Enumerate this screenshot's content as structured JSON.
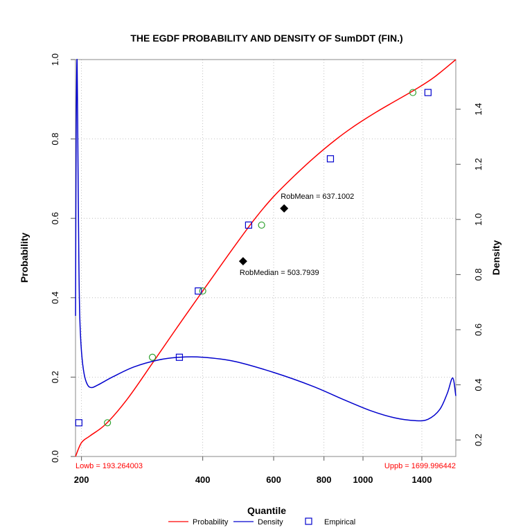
{
  "chart_data": {
    "type": "line",
    "title": "THE EGDF PROBABILITY AND DENSITY OF  SumDDT  (FIN.)",
    "xlabel": "Quantile",
    "ylabel": "Probability",
    "y2label": "Density",
    "x_scale": "log",
    "xlim": [
      193.264003,
      1699.996442
    ],
    "ylim": [
      0,
      1
    ],
    "y2lim": [
      0.14,
      1.58
    ],
    "x_ticks": [
      200,
      400,
      600,
      800,
      1000,
      1400
    ],
    "y_ticks": [
      0.0,
      0.2,
      0.4,
      0.6,
      0.8,
      1.0
    ],
    "y2_ticks": [
      0.2,
      0.4,
      0.6,
      0.8,
      1.0,
      1.2,
      1.4
    ],
    "grid": true,
    "colors": {
      "probability": "#ff0000",
      "density": "#0000cd",
      "empirical": "#0000cd",
      "fitted_points": "#2ca02c",
      "robust_points": "#000000",
      "bounds": "#ff0000",
      "grid": "#b0b0b0"
    },
    "series": [
      {
        "name": "Probability",
        "axis": "left",
        "x": [
          193.3,
          200,
          210,
          230,
          260,
          300,
          340,
          380,
          430,
          480,
          540,
          600,
          680,
          760,
          860,
          960,
          1080,
          1200,
          1350,
          1500,
          1700
        ],
        "y": [
          0.0,
          0.035,
          0.052,
          0.082,
          0.145,
          0.235,
          0.315,
          0.385,
          0.462,
          0.53,
          0.6,
          0.655,
          0.71,
          0.755,
          0.8,
          0.835,
          0.868,
          0.895,
          0.925,
          0.955,
          1.0
        ]
      },
      {
        "name": "Density",
        "axis": "right",
        "x": [
          193.3,
          194,
          195,
          196,
          197,
          198,
          200,
          203,
          207,
          212,
          220,
          240,
          270,
          310,
          350,
          400,
          480,
          600,
          750,
          900,
          1050,
          1200,
          1350,
          1450,
          1550,
          1620,
          1670,
          1700
        ],
        "y": [
          0.65,
          1.3,
          1.58,
          1.22,
          0.85,
          0.65,
          0.52,
          0.44,
          0.4,
          0.39,
          0.4,
          0.43,
          0.465,
          0.49,
          0.5,
          0.5,
          0.485,
          0.445,
          0.395,
          0.345,
          0.305,
          0.28,
          0.27,
          0.275,
          0.31,
          0.37,
          0.425,
          0.36
        ]
      },
      {
        "name": "Empirical",
        "axis": "left",
        "x": [
          197,
          350,
          390,
          520,
          830,
          1450
        ],
        "y": [
          0.085,
          0.25,
          0.417,
          0.583,
          0.75,
          0.917
        ]
      }
    ],
    "fitted_points": {
      "x": [
        232,
        300,
        400,
        560,
        1330
      ],
      "y": [
        0.085,
        0.25,
        0.417,
        0.583,
        0.917
      ]
    },
    "robust_points": [
      {
        "label": "RobMean = 637.1002",
        "x": 637.1002,
        "y": 0.625
      },
      {
        "label": "RobMedian = 503.7939",
        "x": 503.7939,
        "y": 0.492
      }
    ],
    "bounds": {
      "lower_label": "Lowb = 193.264003",
      "upper_label": "Uppb = 1699.996442"
    },
    "legend": {
      "placement": "bottom",
      "entries": [
        "Probability",
        "Density",
        "Empirical"
      ]
    }
  }
}
